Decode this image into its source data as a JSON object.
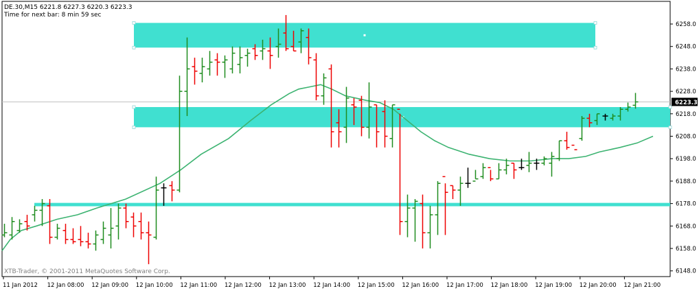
{
  "header": {
    "symbol_line": "DE.30,M15  6221.8 6227.3 6220.3 6223.3",
    "timer_line": "Time for next bar: 8 min 59 sec"
  },
  "copyright": "XTB-Trader, © 2001-2011 MetaQuotes Software Corp.",
  "colors": {
    "bull": "#1e8c1e",
    "bear": "#ee0000",
    "doji": "#000000",
    "zone": "#40e0d0",
    "ma": "#3cb371",
    "current_price_line": "#c0c0c0",
    "current_price_tag": "#000000"
  },
  "chart_data": {
    "type": "ohlc",
    "symbol": "DE.30",
    "timeframe": "M15",
    "last_bar": {
      "open": 6221.8,
      "high": 6227.3,
      "low": 6220.3,
      "close": 6223.3
    },
    "current_price": 6223.3,
    "current_price_label": "6223.3",
    "y_ticks": [
      "6258.0",
      "6248.0",
      "6238.0",
      "6228.0",
      "6218.0",
      "6208.0",
      "6198.0",
      "6188.0",
      "6178.0",
      "6168.0",
      "6158.0",
      "6148.0"
    ],
    "ylim": [
      6145.5,
      6262.0
    ],
    "x_ticks": [
      "11 Jan 2012",
      "12 Jan 08:00",
      "12 Jan 09:00",
      "12 Jan 10:00",
      "12 Jan 11:00",
      "12 Jan 12:00",
      "12 Jan 13:00",
      "12 Jan 14:00",
      "12 Jan 15:00",
      "12 Jan 16:00",
      "12 Jan 17:00",
      "12 Jan 18:00",
      "12 Jan 19:00",
      "12 Jan 20:00",
      "12 Jan 21:00"
    ],
    "bars": [
      [
        6164,
        6169,
        6163,
        6165
      ],
      [
        6164,
        6172,
        6162,
        6170
      ],
      [
        6166,
        6171,
        6165,
        6169
      ],
      [
        6170,
        6173,
        6166,
        6168
      ],
      [
        6173,
        6177,
        6170,
        6175
      ],
      [
        6175,
        6180,
        6168,
        6178
      ],
      [
        6177,
        6180,
        6160,
        6163
      ],
      [
        6163,
        6169,
        6162,
        6167
      ],
      [
        6166,
        6169,
        6160,
        6162
      ],
      [
        6162,
        6167,
        6160,
        6161
      ],
      [
        6162,
        6168,
        6159,
        6161
      ],
      [
        6161,
        6165,
        6158,
        6160
      ],
      [
        6160,
        6166,
        6157,
        6164
      ],
      [
        6162,
        6170,
        6160,
        6167
      ],
      [
        6164,
        6176,
        6158,
        6167
      ],
      [
        6168,
        6178,
        6162,
        6176
      ],
      [
        6176,
        6178,
        6167,
        6170
      ],
      [
        6172,
        6174,
        6163,
        6168
      ],
      [
        6170,
        6174,
        6162,
        6165
      ],
      [
        6165,
        6170,
        6151,
        6164
      ],
      [
        6163,
        6190,
        6162,
        6184
      ],
      [
        6185,
        6187,
        6177,
        6185
      ],
      [
        6186,
        6188,
        6179,
        6184
      ],
      [
        6184,
        6235,
        6183,
        6228
      ],
      [
        6228,
        6252,
        6217,
        6238
      ],
      [
        6239,
        6243,
        6231,
        6237
      ],
      [
        6236,
        6243,
        6232,
        6239
      ],
      [
        6238,
        6246,
        6235,
        6241
      ],
      [
        6242,
        6245,
        6235,
        6241
      ],
      [
        6241,
        6244,
        6234,
        6242
      ],
      [
        6238,
        6248,
        6236,
        6245
      ],
      [
        6240,
        6248,
        6236,
        6243
      ],
      [
        6244,
        6247,
        6239,
        6245
      ],
      [
        6247,
        6249,
        6242,
        6244
      ],
      [
        6246,
        6251,
        6242,
        6247
      ],
      [
        6246,
        6252,
        6238,
        6244
      ],
      [
        6248,
        6256,
        6243,
        6249
      ],
      [
        6254,
        6262,
        6246,
        6247
      ],
      [
        6248,
        6255,
        6246,
        6246
      ],
      [
        6250,
        6256,
        6245,
        6255
      ],
      [
        6252,
        6256,
        6240,
        6243
      ],
      [
        6242,
        6245,
        6224,
        6226
      ],
      [
        6226,
        6236,
        6222,
        6234
      ],
      [
        6238,
        6240,
        6203,
        6210
      ],
      [
        6214,
        6220,
        6203,
        6210
      ],
      [
        6212,
        6230,
        6205,
        6225
      ],
      [
        6222,
        6225,
        6213,
        6221
      ],
      [
        6224,
        6226,
        6208,
        6212
      ],
      [
        6212,
        6232,
        6207,
        6221
      ],
      [
        6222,
        6222,
        6203,
        6210
      ],
      [
        6219,
        6224,
        6203,
        6208
      ],
      [
        6207,
        6222,
        6203,
        6222
      ],
      [
        6220,
        6218,
        6164,
        6170
      ],
      [
        6170,
        6182,
        6163,
        6176
      ],
      [
        6176,
        6180,
        6161,
        6179
      ],
      [
        6178,
        6182,
        6158,
        6165
      ],
      [
        6165,
        6177,
        6158,
        6173
      ],
      [
        6173,
        6188,
        6164,
        6187
      ],
      [
        6190,
        6187,
        6164,
        6183
      ],
      [
        6186,
        6186,
        6180,
        6184
      ],
      [
        6184,
        6190,
        6177,
        6187
      ],
      [
        6187,
        6194,
        6185,
        6187
      ],
      [
        6188,
        6193,
        6189,
        6189
      ],
      [
        6190,
        6196,
        6189,
        6194
      ],
      [
        6194,
        6193,
        6188,
        6189
      ],
      [
        6189,
        6196,
        6189,
        6193
      ],
      [
        6193,
        6198,
        6191,
        6195
      ],
      [
        6196,
        6196,
        6189,
        6193
      ],
      [
        6194,
        6198,
        6193,
        6194
      ],
      [
        6195,
        6201,
        6192,
        6196
      ],
      [
        6196,
        6198,
        6193,
        6196
      ],
      [
        6196,
        6199,
        6195,
        6198
      ],
      [
        6196,
        6201,
        6190,
        6199
      ],
      [
        6198,
        6206,
        6197,
        6206
      ],
      [
        6206,
        6210,
        6202,
        6203
      ],
      [
        6204,
        6202,
        6202,
        6202
      ],
      [
        6207,
        6217,
        6206,
        6216
      ],
      [
        6216,
        6218,
        6212,
        6214
      ],
      [
        6215,
        6218,
        6213,
        6218
      ],
      [
        6217,
        6218,
        6215,
        6217
      ],
      [
        6216,
        6218,
        6215,
        6217
      ],
      [
        6217,
        6221,
        6215,
        6220
      ],
      [
        6220,
        6223,
        6219,
        6221
      ],
      [
        6221.8,
        6227.3,
        6220.3,
        6223.3
      ]
    ],
    "moving_average": [
      [
        0,
        6157
      ],
      [
        12,
        6162
      ],
      [
        28,
        6166
      ],
      [
        50,
        6168
      ],
      [
        80,
        6171
      ],
      [
        110,
        6173
      ],
      [
        138,
        6176
      ],
      [
        180,
        6180
      ],
      [
        230,
        6187
      ],
      [
        260,
        6193
      ],
      [
        290,
        6200
      ],
      [
        330,
        6207
      ],
      [
        362,
        6215
      ],
      [
        392,
        6222
      ],
      [
        418,
        6227
      ],
      [
        432,
        6229
      ],
      [
        448,
        6230
      ],
      [
        464,
        6231
      ],
      [
        480,
        6229
      ],
      [
        500,
        6226
      ],
      [
        530,
        6224
      ],
      [
        550,
        6223
      ],
      [
        570,
        6220
      ],
      [
        590,
        6215
      ],
      [
        610,
        6210
      ],
      [
        630,
        6206
      ],
      [
        650,
        6203
      ],
      [
        680,
        6200
      ],
      [
        710,
        6198
      ],
      [
        740,
        6197
      ],
      [
        770,
        6197
      ],
      [
        800,
        6198
      ],
      [
        825,
        6198
      ],
      [
        850,
        6199
      ],
      [
        870,
        6201
      ],
      [
        900,
        6203
      ],
      [
        925,
        6205
      ],
      [
        948,
        6208
      ]
    ],
    "zones": [
      {
        "low": 6247.5,
        "high": 6258.5
      },
      {
        "low": 6212.0,
        "high": 6221.0
      },
      {
        "low": 6176.8,
        "high": 6178.3
      }
    ]
  }
}
